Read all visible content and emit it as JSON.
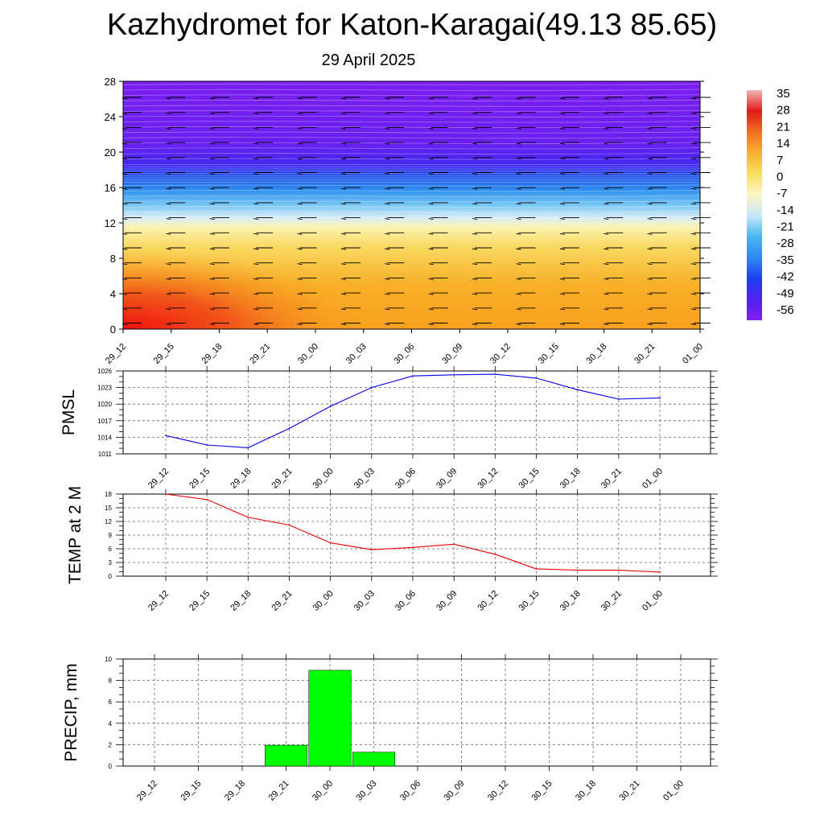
{
  "title": "Kazhydromet for Katon-Karagai(49.13 85.65)",
  "subtitle": "29 April 2025",
  "colorbar": {
    "labels": [
      "35",
      "28",
      "21",
      "14",
      "7",
      "0",
      "-7",
      "-14",
      "-21",
      "-28",
      "-35",
      "-42",
      "-49",
      "-56"
    ],
    "stops": [
      "#f2b5b5",
      "#e01818",
      "#f07020",
      "#f8b030",
      "#f8e060",
      "#fbf6c8",
      "#c8e8f8",
      "#48b8f0",
      "#3088f0",
      "#2040f0",
      "#5020f0",
      "#8020f0"
    ]
  },
  "chart_data": [
    {
      "type": "heatmap",
      "name": "cross-section",
      "x_ticks": [
        "29_12",
        "29_15",
        "29_18",
        "29_21",
        "30_00",
        "30_03",
        "30_06",
        "30_09",
        "30_12",
        "30_15",
        "30_18",
        "30_21",
        "01_00"
      ],
      "y_ticks": [
        "0",
        "4",
        "8",
        "12",
        "16",
        "20",
        "24",
        "28"
      ],
      "ylim": [
        0,
        28
      ],
      "wind_barbs": true,
      "colors": {
        "warm": "#f01010",
        "surface": "#f8a020",
        "yellow": "#fbf3b0",
        "cold": "#3090f0",
        "upper": "#7a1ef0"
      }
    },
    {
      "type": "line",
      "name": "pmsl",
      "ylabel": "PMSL",
      "categories": [
        "29_12",
        "29_15",
        "29_18",
        "29_21",
        "30_00",
        "30_03",
        "30_06",
        "30_09",
        "30_12",
        "30_15",
        "30_18",
        "30_21",
        "01_00"
      ],
      "values": [
        1014.3,
        1012.6,
        1012.1,
        1015.6,
        1019.6,
        1023.0,
        1025.1,
        1025.3,
        1025.4,
        1024.7,
        1022.6,
        1020.9,
        1021.1
      ],
      "y_ticks": [
        "1011",
        "1014",
        "1017",
        "1020",
        "1023",
        "1026"
      ],
      "ylim": [
        1011,
        1026
      ],
      "color": "#0000ee",
      "grid": true
    },
    {
      "type": "line",
      "name": "temp",
      "ylabel": "TEMP at 2 M",
      "categories": [
        "29_12",
        "29_15",
        "29_18",
        "29_21",
        "30_00",
        "30_03",
        "30_06",
        "30_09",
        "30_12",
        "30_15",
        "30_18",
        "30_21",
        "01_00"
      ],
      "values": [
        18.0,
        16.8,
        12.9,
        11.2,
        7.3,
        5.8,
        6.3,
        7.0,
        4.8,
        1.6,
        1.3,
        1.3,
        0.9
      ],
      "y_ticks": [
        "0",
        "3",
        "6",
        "9",
        "12",
        "15",
        "18"
      ],
      "ylim": [
        0,
        18
      ],
      "color": "#ee0000",
      "grid": true
    },
    {
      "type": "bar",
      "name": "precip",
      "ylabel": "PRECIP, mm",
      "categories": [
        "29_12",
        "29_15",
        "29_18",
        "29_21",
        "30_00",
        "30_03",
        "30_06",
        "30_09",
        "30_12",
        "30_15",
        "30_18",
        "30_21",
        "01_00"
      ],
      "values": [
        0,
        0,
        0,
        1.95,
        8.95,
        1.3,
        0,
        0,
        0,
        0,
        0,
        0,
        0
      ],
      "y_ticks": [
        "0",
        "2",
        "4",
        "6",
        "8",
        "10"
      ],
      "ylim": [
        0,
        10
      ],
      "color": "#00ff00",
      "grid": true
    }
  ]
}
